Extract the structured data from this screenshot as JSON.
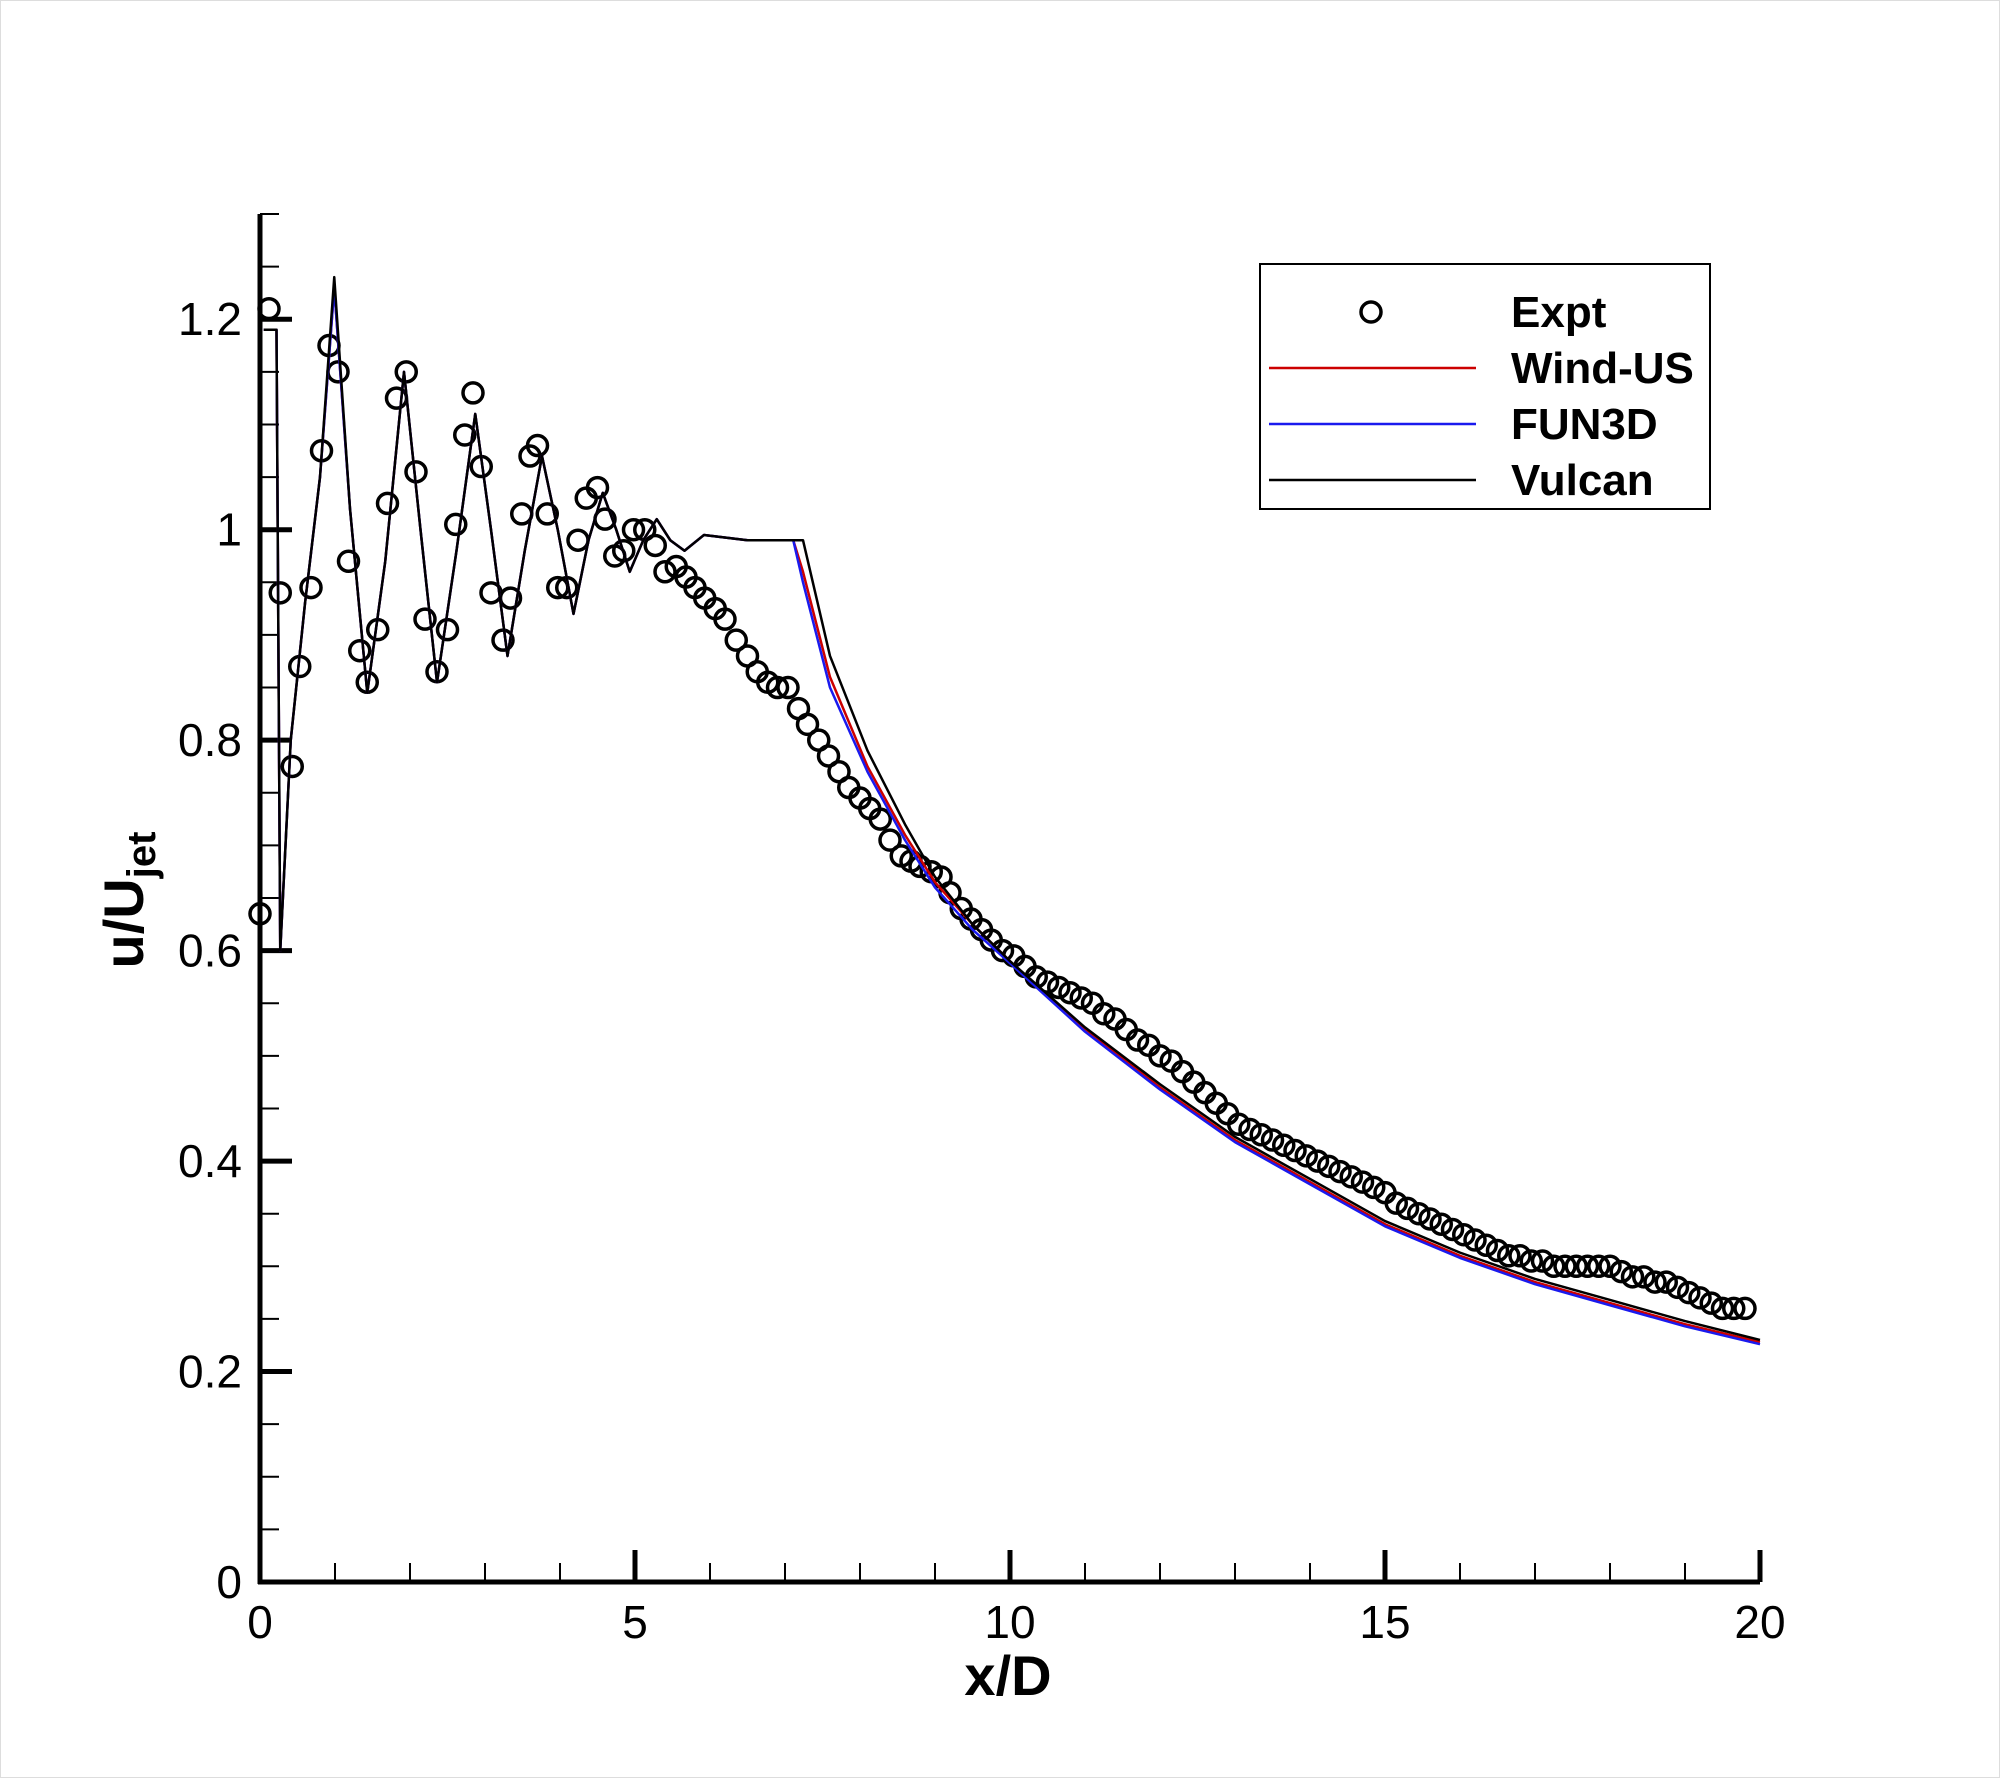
{
  "chart_data": {
    "type": "line",
    "xlabel": "x/D",
    "ylabel": "u/U",
    "ylabel_sub": "jet",
    "xlim": [
      0,
      20
    ],
    "ylim": [
      0,
      1.3
    ],
    "xticks": [
      0,
      5,
      10,
      15,
      20
    ],
    "yticks": [
      0,
      0.2,
      0.4,
      0.6,
      0.8,
      1,
      1.2
    ],
    "xminor": 1,
    "yminor": 0.05,
    "legend": "top right",
    "x": [
      0.05,
      0.22,
      0.27,
      0.41,
      0.6,
      0.8,
      0.99,
      1.2,
      1.43,
      1.67,
      1.92,
      2.14,
      2.36,
      2.62,
      2.87,
      3.08,
      3.3,
      3.53,
      3.76,
      3.97,
      4.18,
      4.38,
      4.57,
      4.75,
      4.93,
      5.11,
      5.29,
      5.47,
      5.66,
      5.92,
      6.5,
      7.11,
      7.24,
      7.6,
      8.1,
      8.6,
      9,
      9.5,
      10,
      11,
      12,
      13,
      14,
      15,
      16,
      17,
      18,
      19,
      20
    ],
    "series": [
      {
        "name": "Expt",
        "marker": "circle",
        "color": "#000000",
        "x": [
          0,
          0.12,
          0.27,
          0.43,
          0.53,
          0.68,
          0.82,
          0.92,
          1.04,
          1.18,
          1.33,
          1.43,
          1.57,
          1.7,
          1.82,
          1.95,
          2.08,
          2.2,
          2.36,
          2.5,
          2.61,
          2.73,
          2.84,
          2.95,
          3.08,
          3.24,
          3.34,
          3.49,
          3.6,
          3.7,
          3.83,
          3.97,
          4.09,
          4.24,
          4.35,
          4.5,
          4.6,
          4.73,
          4.85,
          4.98,
          5.13,
          5.27,
          5.4,
          5.55,
          5.68,
          5.8,
          5.93,
          6.07,
          6.2,
          6.35,
          6.5,
          6.63,
          6.77,
          6.9,
          7.04,
          7.18,
          7.3,
          7.45,
          7.58,
          7.72,
          7.85,
          8.0,
          8.13,
          8.27,
          8.4,
          8.55,
          8.68,
          8.8,
          8.95,
          9.08,
          9.2,
          9.35,
          9.48,
          9.62,
          9.75,
          9.9,
          10.05,
          10.2,
          10.35,
          10.5,
          10.65,
          10.8,
          10.95,
          11.1,
          11.25,
          11.4,
          11.55,
          11.7,
          11.85,
          12.0,
          12.15,
          12.3,
          12.45,
          12.6,
          12.75,
          12.9,
          13.05,
          13.2,
          13.35,
          13.5,
          13.65,
          13.8,
          13.95,
          14.1,
          14.25,
          14.4,
          14.55,
          14.7,
          14.85,
          15.0,
          15.15,
          15.3,
          15.45,
          15.6,
          15.75,
          15.9,
          16.05,
          16.2,
          16.35,
          16.5,
          16.65,
          16.8,
          16.95,
          17.1,
          17.25,
          17.4,
          17.55,
          17.7,
          17.85,
          18.0,
          18.15,
          18.3,
          18.45,
          18.6,
          18.75,
          18.9,
          19.05,
          19.2,
          19.35,
          19.5,
          19.65,
          19.8
        ],
        "values": [
          0.635,
          1.21,
          0.94,
          0.775,
          0.87,
          0.945,
          1.075,
          1.175,
          1.15,
          0.97,
          0.885,
          0.855,
          0.905,
          1.025,
          1.125,
          1.15,
          1.055,
          0.915,
          0.865,
          0.905,
          1.005,
          1.09,
          1.13,
          1.06,
          0.94,
          0.895,
          0.935,
          1.015,
          1.07,
          1.08,
          1.015,
          0.945,
          0.945,
          0.99,
          1.03,
          1.04,
          1.01,
          0.975,
          0.98,
          1.0,
          1.0,
          0.985,
          0.96,
          0.965,
          0.955,
          0.945,
          0.935,
          0.925,
          0.915,
          0.895,
          0.88,
          0.865,
          0.855,
          0.85,
          0.85,
          0.83,
          0.815,
          0.8,
          0.785,
          0.77,
          0.755,
          0.745,
          0.735,
          0.725,
          0.705,
          0.69,
          0.685,
          0.68,
          0.675,
          0.67,
          0.655,
          0.64,
          0.63,
          0.62,
          0.61,
          0.6,
          0.595,
          0.585,
          0.575,
          0.57,
          0.565,
          0.56,
          0.555,
          0.55,
          0.54,
          0.535,
          0.525,
          0.515,
          0.51,
          0.5,
          0.495,
          0.485,
          0.475,
          0.465,
          0.455,
          0.445,
          0.435,
          0.43,
          0.425,
          0.42,
          0.415,
          0.41,
          0.405,
          0.4,
          0.395,
          0.39,
          0.385,
          0.38,
          0.375,
          0.37,
          0.36,
          0.355,
          0.35,
          0.345,
          0.34,
          0.335,
          0.33,
          0.325,
          0.32,
          0.315,
          0.31,
          0.31,
          0.305,
          0.305,
          0.3,
          0.3,
          0.3,
          0.3,
          0.3,
          0.3,
          0.295,
          0.29,
          0.29,
          0.285,
          0.285,
          0.28,
          0.275,
          0.27,
          0.265,
          0.26,
          0.26,
          0.26
        ]
      },
      {
        "name": "Wind-US",
        "color": "#cc0000",
        "values": [
          1.19,
          1.19,
          0.6,
          0.8,
          0.93,
          1.05,
          1.23,
          1.02,
          0.845,
          0.97,
          1.15,
          1.0,
          0.855,
          0.98,
          1.11,
          1.0,
          0.88,
          0.98,
          1.07,
          1.0,
          0.92,
          0.99,
          1.035,
          1.0,
          0.96,
          0.99,
          1.01,
          0.99,
          0.98,
          0.995,
          0.99,
          0.99,
          0.96,
          0.86,
          0.775,
          0.71,
          0.665,
          0.625,
          0.59,
          0.525,
          0.47,
          0.42,
          0.38,
          0.34,
          0.31,
          0.285,
          0.265,
          0.245,
          0.228
        ]
      },
      {
        "name": "FUN3D",
        "color": "#1a1aee",
        "values": [
          1.19,
          1.19,
          0.6,
          0.8,
          0.93,
          1.05,
          1.23,
          1.02,
          0.845,
          0.97,
          1.15,
          1.0,
          0.855,
          0.98,
          1.11,
          1.0,
          0.88,
          0.98,
          1.07,
          1.0,
          0.92,
          0.99,
          1.035,
          1.0,
          0.96,
          0.99,
          1.01,
          0.99,
          0.98,
          0.995,
          0.99,
          0.99,
          0.95,
          0.85,
          0.77,
          0.705,
          0.66,
          0.62,
          0.588,
          0.523,
          0.468,
          0.418,
          0.378,
          0.338,
          0.308,
          0.283,
          0.263,
          0.243,
          0.226
        ]
      },
      {
        "name": "Vulcan",
        "color": "#000000",
        "values": [
          1.19,
          1.19,
          0.6,
          0.8,
          0.93,
          1.05,
          1.24,
          1.02,
          0.845,
          0.97,
          1.15,
          1.0,
          0.855,
          0.98,
          1.11,
          1.0,
          0.88,
          0.98,
          1.07,
          1.0,
          0.92,
          0.99,
          1.035,
          1.0,
          0.96,
          0.99,
          1.01,
          0.99,
          0.98,
          0.995,
          0.99,
          0.99,
          0.99,
          0.88,
          0.79,
          0.72,
          0.67,
          0.625,
          0.59,
          0.527,
          0.473,
          0.423,
          0.383,
          0.343,
          0.313,
          0.288,
          0.268,
          0.248,
          0.23
        ]
      }
    ]
  }
}
